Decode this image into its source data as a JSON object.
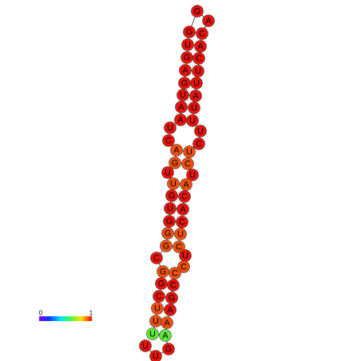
{
  "nodes": [
    {
      "label": "U",
      "color": "#5ee838"
    },
    {
      "label": "U",
      "color": "#f0500f"
    },
    {
      "label": "U",
      "color": "#f0500f"
    },
    {
      "label": "C",
      "color": "#e8140c"
    },
    {
      "label": "G",
      "color": "#e8140c"
    },
    {
      "label": "G",
      "color": "#f0500f"
    },
    {
      "label": "C",
      "color": "#e8140c"
    },
    {
      "label": "G",
      "color": "#f0500f"
    },
    {
      "label": "G",
      "color": "#f0500f"
    },
    {
      "label": "G",
      "color": "#e8140c"
    },
    {
      "label": "U",
      "color": "#e8140c"
    },
    {
      "label": "G",
      "color": "#e8140c"
    },
    {
      "label": "U",
      "color": "#f0500f"
    },
    {
      "label": "U",
      "color": "#e8140c"
    },
    {
      "label": "G",
      "color": "#f0500f"
    },
    {
      "label": "A",
      "color": "#f0500f"
    },
    {
      "label": "C",
      "color": "#e8140c"
    },
    {
      "label": "U",
      "color": "#e8140c"
    },
    {
      "label": "A",
      "color": "#e8140c"
    },
    {
      "label": "A",
      "color": "#e8140c"
    },
    {
      "label": "U",
      "color": "#e8140c"
    },
    {
      "label": "G",
      "color": "#e8140c"
    },
    {
      "label": "A",
      "color": "#e8140c"
    },
    {
      "label": "G",
      "color": "#e8140c"
    },
    {
      "label": "U",
      "color": "#e8140c"
    },
    {
      "label": "G",
      "color": "#e8140c"
    },
    {
      "label": "G",
      "color": "#e8140c"
    },
    {
      "label": "A",
      "color": "#e8140c"
    },
    {
      "label": "C",
      "color": "#e8140c"
    },
    {
      "label": "A",
      "color": "#e8140c"
    },
    {
      "label": "C",
      "color": "#e8140c"
    },
    {
      "label": "U",
      "color": "#e8140c"
    },
    {
      "label": "U",
      "color": "#e8140c"
    },
    {
      "label": "A",
      "color": "#e8140c"
    },
    {
      "label": "U",
      "color": "#e8140c"
    },
    {
      "label": "U",
      "color": "#e8140c"
    },
    {
      "label": "U",
      "color": "#e8140c"
    },
    {
      "label": "C",
      "color": "#e8140c"
    },
    {
      "label": "U",
      "color": "#f0500f"
    },
    {
      "label": "C",
      "color": "#f0500f"
    },
    {
      "label": "U",
      "color": "#e8140c"
    },
    {
      "label": "A",
      "color": "#f0500f"
    },
    {
      "label": "C",
      "color": "#e8140c"
    },
    {
      "label": "A",
      "color": "#e8140c"
    },
    {
      "label": "C",
      "color": "#e8140c"
    },
    {
      "label": "U",
      "color": "#f0500f"
    },
    {
      "label": "C",
      "color": "#f0500f"
    },
    {
      "label": "U",
      "color": "#e8140c"
    },
    {
      "label": "C",
      "color": "#f0500f"
    },
    {
      "label": "C",
      "color": "#f0500f"
    },
    {
      "label": "C",
      "color": "#e8140c"
    },
    {
      "label": "G",
      "color": "#e8140c"
    },
    {
      "label": "A",
      "color": "#e8140c"
    },
    {
      "label": "A",
      "color": "#f0500f"
    },
    {
      "label": "A",
      "color": "#5ee838"
    },
    {
      "label": "G",
      "color": "#e8140c"
    },
    {
      "label": "U",
      "color": "#e8140c"
    },
    {
      "label": "U",
      "color": "#e8140c"
    }
  ],
  "colorbar": {
    "min": 0,
    "max": 1
  }
}
